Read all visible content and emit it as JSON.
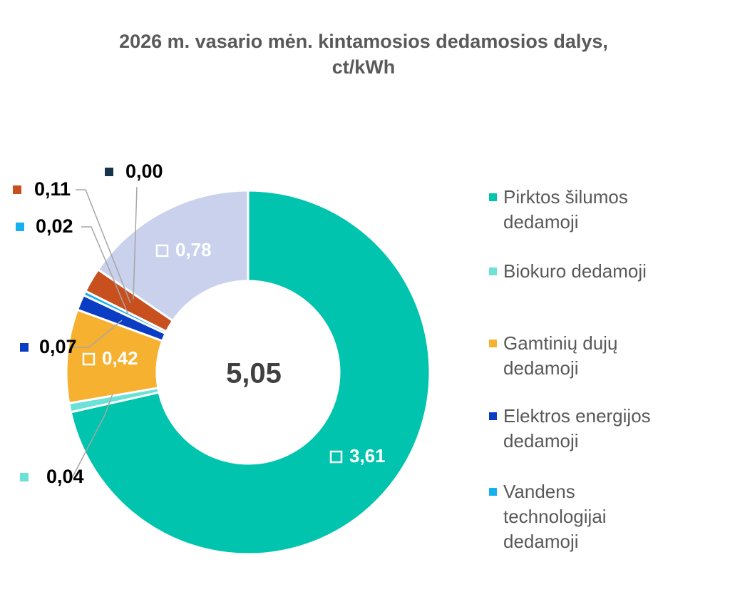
{
  "chart_data": {
    "type": "donut",
    "title": [
      "2026 m.  vasario mėn.  kintamosios dedamosios dalys,",
      "ct/kWh"
    ],
    "center_label": "5,05",
    "slices": [
      {
        "name": "Pirktos šilumos dedamoji",
        "value": 3.61,
        "label": "3,61",
        "color": "#00c4ad"
      },
      {
        "name": "Biokuro dedamoji",
        "value": 0.04,
        "label": "0,04",
        "color": "#6ce1d6"
      },
      {
        "name": "Gamtinių dujų dedamoji",
        "value": 0.42,
        "label": "0,42",
        "color": "#f6b130"
      },
      {
        "name": "Elektros energijos dedamoji",
        "value": 0.07,
        "label": "0,07",
        "color": "#0a3cc4"
      },
      {
        "name": "Vandens technologijai dedamoji",
        "value": 0.02,
        "label": "0,02",
        "color": "#17b0ee"
      },
      {
        "name": "",
        "value": 0.11,
        "label": "0,11",
        "color": "#c8501f"
      },
      {
        "name": "",
        "value": 0.0,
        "label": "0,00",
        "color": "#17344a"
      },
      {
        "name": "",
        "value": 0.78,
        "label": "0,78",
        "color": "#c9d1ec"
      }
    ],
    "legend": [
      {
        "lines": [
          "Pirktos šilumos",
          "dedamoji"
        ],
        "color": "#00c4ad"
      },
      {
        "lines": [
          "Biokuro dedamoji"
        ],
        "color": "#6ce1d6"
      },
      {
        "lines": [
          "Gamtinių dujų",
          "dedamoji"
        ],
        "color": "#f6b130"
      },
      {
        "lines": [
          "Elektros energijos",
          "dedamoji"
        ],
        "color": "#0a3cc4"
      },
      {
        "lines": [
          "Vandens",
          "technologijai",
          "dedamoji"
        ],
        "color": "#17b0ee"
      }
    ]
  }
}
